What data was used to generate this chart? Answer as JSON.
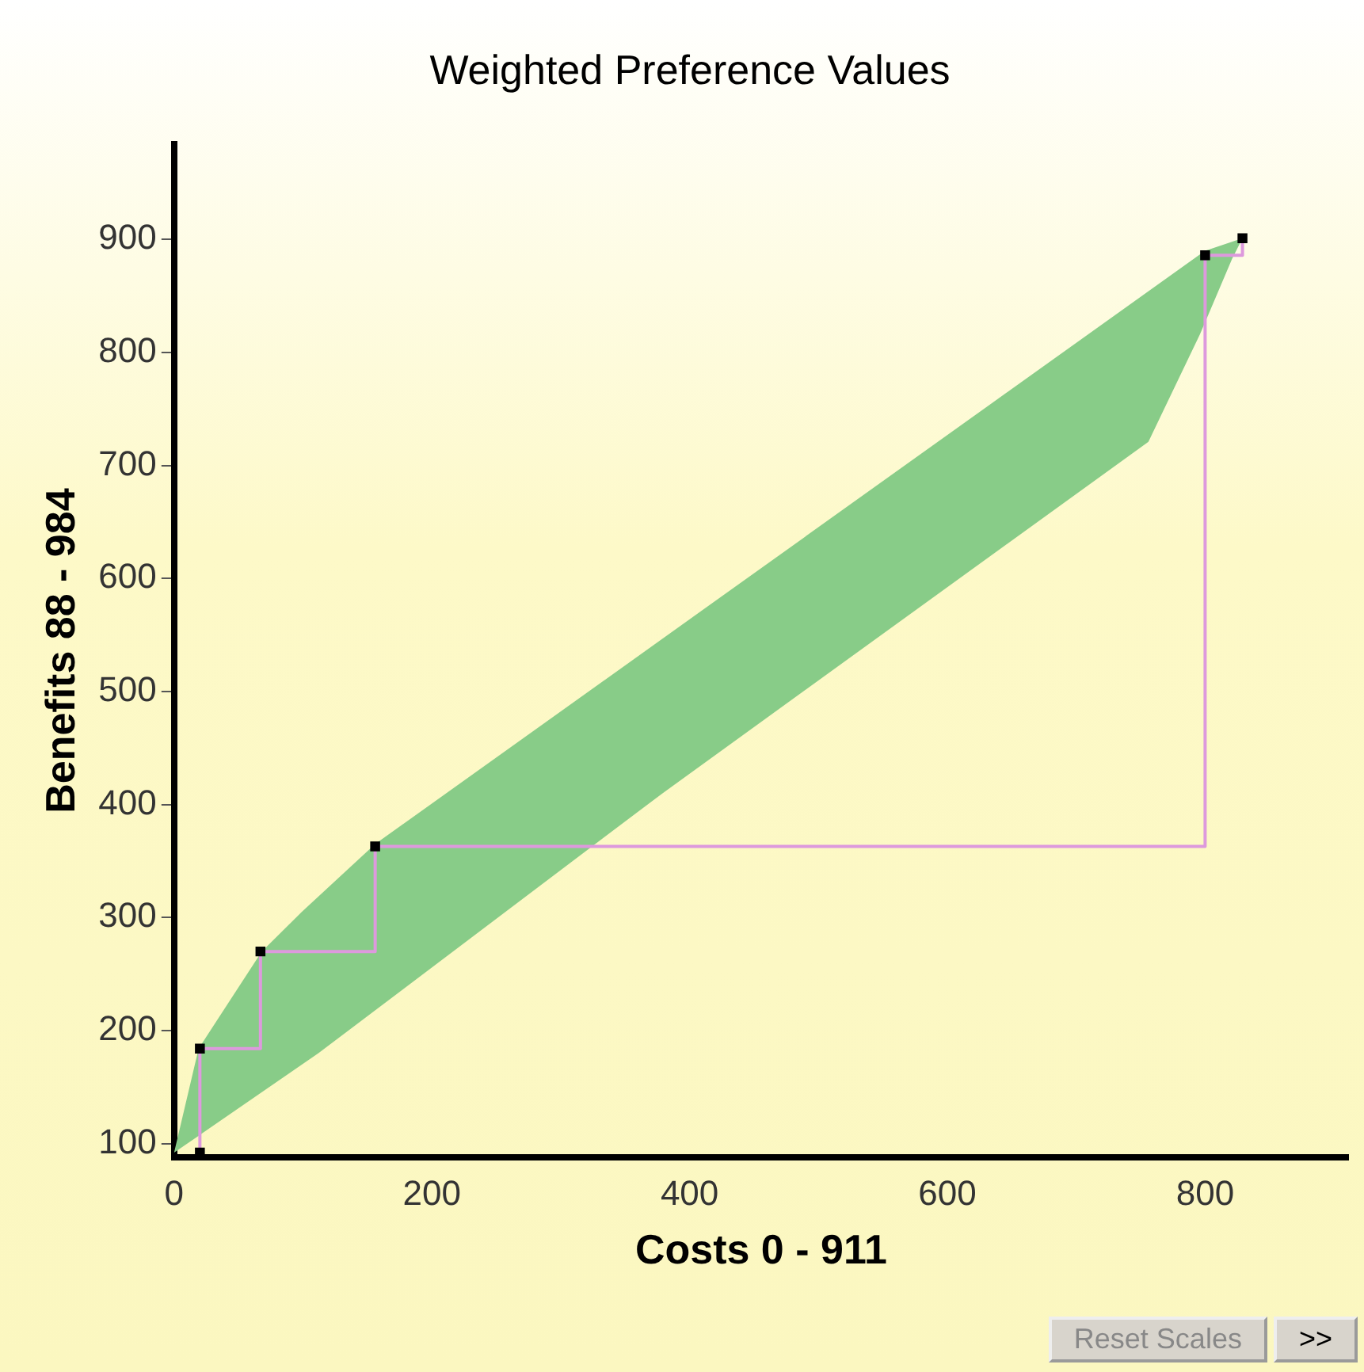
{
  "chart_data": {
    "type": "line",
    "title": "Weighted Preference Values",
    "xlabel": "Costs 0 - 911",
    "ylabel": "Benefits 88 - 984",
    "xlim": [
      0,
      911
    ],
    "xticks": [
      0,
      200,
      400,
      600,
      800
    ],
    "ylim": [
      88,
      984
    ],
    "yticks": [
      100,
      200,
      300,
      400,
      500,
      600,
      700,
      800,
      900
    ],
    "grid": false,
    "legend": false,
    "series": [
      {
        "type": "area",
        "color": "#88cc88",
        "x": [
          0,
          19,
          68,
          99,
          156,
          800,
          829,
          821,
          796,
          756,
          379,
          112,
          0
        ],
        "values": [
          92,
          184,
          270,
          305,
          365,
          890,
          901,
          883,
          816,
          721,
          410,
          180,
          92
        ]
      },
      {
        "type": "step",
        "color": "#dd99dd",
        "marker": "square",
        "x": [
          20,
          20,
          67,
          156,
          800,
          829
        ],
        "values": [
          92,
          184,
          270,
          363,
          886,
          901
        ]
      }
    ],
    "annotations": [
      "Reset Scales",
      ">>"
    ]
  }
}
